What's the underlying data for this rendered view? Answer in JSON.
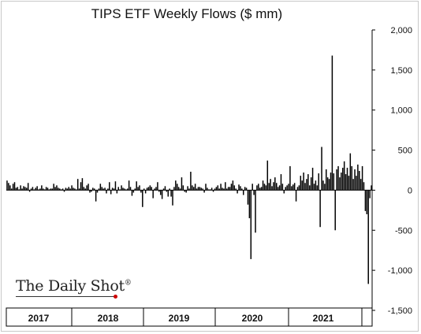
{
  "chart_data": {
    "type": "bar",
    "title": "TIPS ETF Weekly Flows ($ mm)",
    "ylim": [
      -1500,
      2000
    ],
    "yticks": [
      2000,
      1500,
      1000,
      500,
      0,
      -500,
      -1000,
      -1500
    ],
    "ytick_labels": [
      "2,000",
      "1,500",
      "1,000",
      "500",
      "0",
      "-500",
      "-1,000",
      "-1,500"
    ],
    "xticks": [
      "2017",
      "2018",
      "2019",
      "2020",
      "2021"
    ],
    "bar_color": "#000000",
    "grid": false,
    "x_start_year": 2017,
    "values": [
      120,
      90,
      60,
      20,
      80,
      100,
      30,
      40,
      10,
      60,
      20,
      50,
      40,
      30,
      90,
      -20,
      20,
      40,
      10,
      30,
      50,
      10,
      20,
      60,
      20,
      10,
      40,
      30,
      10,
      20,
      20,
      80,
      40,
      60,
      30,
      20,
      10,
      20,
      -20,
      30,
      20,
      40,
      20,
      60,
      30,
      20,
      10,
      140,
      20,
      100,
      150,
      40,
      20,
      60,
      80,
      -30,
      -20,
      30,
      20,
      -140,
      -30,
      20,
      80,
      40,
      20,
      30,
      -40,
      20,
      100,
      -50,
      30,
      20,
      110,
      -40,
      40,
      10,
      60,
      30,
      20,
      10,
      20,
      120,
      40,
      -70,
      -30,
      20,
      110,
      40,
      60,
      -30,
      -210,
      20,
      -40,
      30,
      40,
      60,
      40,
      -100,
      20,
      40,
      100,
      -20,
      -60,
      -110,
      20,
      50,
      -20,
      -80,
      20,
      -80,
      -190,
      40,
      120,
      80,
      40,
      20,
      160,
      60,
      -20,
      -30,
      50,
      20,
      230,
      60,
      40,
      80,
      20,
      40,
      40,
      30,
      20,
      -30,
      80,
      30,
      10,
      10,
      30,
      -20,
      20,
      40,
      60,
      20,
      80,
      30,
      20,
      100,
      20,
      40,
      40,
      80,
      120,
      60,
      20,
      -40,
      70,
      50,
      20,
      -60,
      40,
      30,
      -180,
      -350,
      -860,
      80,
      -60,
      -530,
      60,
      80,
      30,
      40,
      120,
      80,
      60,
      370,
      90,
      140,
      50,
      100,
      160,
      90,
      40,
      60,
      200,
      80,
      -40,
      40,
      60,
      80,
      300,
      50,
      70,
      90,
      -140,
      40,
      60,
      180,
      120,
      220,
      90,
      140,
      200,
      60,
      160,
      280,
      80,
      120,
      60,
      210,
      -460,
      540,
      120,
      80,
      260,
      160,
      140,
      220,
      1680,
      210,
      -500,
      260,
      300,
      160,
      220,
      280,
      360,
      200,
      280,
      180,
      460,
      300,
      140,
      260,
      180,
      320,
      240,
      140,
      300,
      100,
      -260,
      -300,
      -1170,
      -100,
      60
    ]
  }
}
